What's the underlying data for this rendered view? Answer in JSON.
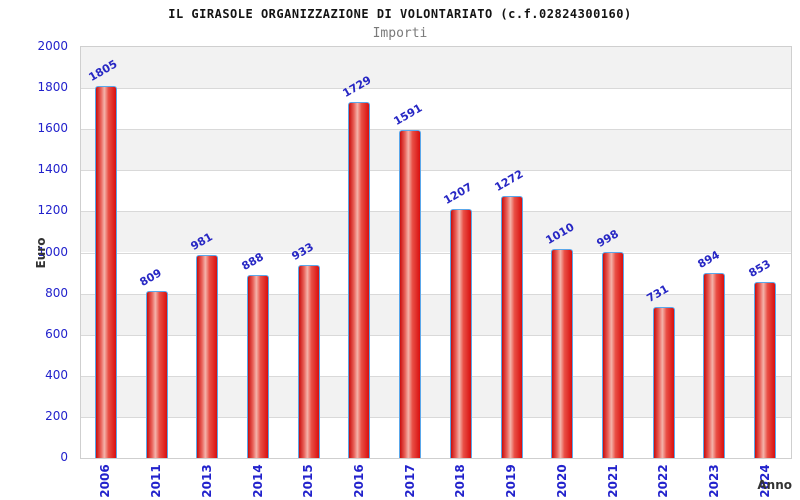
{
  "header": {
    "title": "IL GIRASOLE ORGANIZZAZIONE DI VOLONTARIATO (c.f.02824300160)",
    "subtitle": "Importi"
  },
  "chart_data": {
    "type": "bar",
    "title": "IL GIRASOLE ORGANIZZAZIONE DI VOLONTARIATO (c.f.02824300160)",
    "subtitle": "Importi",
    "xlabel": "Anno",
    "ylabel": "Euro",
    "categories": [
      "2006",
      "2011",
      "2013",
      "2014",
      "2015",
      "2016",
      "2017",
      "2018",
      "2019",
      "2020",
      "2021",
      "2022",
      "2023",
      "2024"
    ],
    "values": [
      1805,
      809,
      981,
      888,
      933,
      1729,
      1591,
      1207,
      1272,
      1010,
      998,
      731,
      894,
      853
    ],
    "ylim": [
      0,
      2000
    ],
    "ytick_step": 200,
    "ytick_labels": [
      "0",
      "200",
      "400",
      "600",
      "800",
      "1000",
      "1200",
      "1400",
      "1600",
      "1800",
      "2000"
    ],
    "grid": "horizontal-bands",
    "legend": "none",
    "bar_labels_rotation_deg": -30,
    "xtick_rotation_deg": -90,
    "colors": {
      "bar_fill_edge": "#d90f0f",
      "bar_fill_center": "#f4b4ab",
      "bar_border": "#5aa7ea",
      "label_blue": "#2222cc",
      "band_gray": "#f2f2f2",
      "grid_line": "#d9d9d9",
      "plot_border": "#cfcfcf",
      "title_color": "#141414",
      "subtitle_color": "#7a7a7a",
      "axis_title_color": "#333333"
    }
  }
}
